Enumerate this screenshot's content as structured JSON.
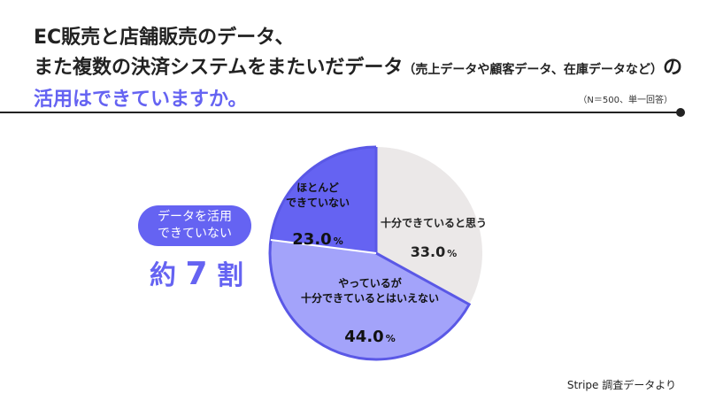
{
  "title": {
    "line1": "EC販売と店舗販売のデータ、",
    "line2_main": "また複数の決済システムをまたいだデータ",
    "line2_paren": "（売上データや顧客データ、在庫データなど）",
    "line2_end": "の",
    "line3": "活用はできていますか。"
  },
  "note": "（N＝500、単一回答）",
  "badge": {
    "line1": "データを活用",
    "line2": "できていない"
  },
  "summary": {
    "prefix": "約",
    "number": "7",
    "suffix": "割"
  },
  "source": "Stripe 調査データより",
  "colors": {
    "accent": "#6563f2",
    "light": "#a3a3fa",
    "gray": "#ebe8e8",
    "stroke": "#5a58e6"
  },
  "chart_data": {
    "type": "pie",
    "unit": "%",
    "slices": [
      {
        "label_lines": [
          "十分できていると思う"
        ],
        "value": 33.0,
        "value_label": "33.0",
        "color": "#ebe8e8",
        "text_color": "#222222"
      },
      {
        "label_lines": [
          "やっているが",
          "十分できているとはいえない"
        ],
        "value": 44.0,
        "value_label": "44.0",
        "color": "#a3a3fa",
        "text_color": "#111111"
      },
      {
        "label_lines": [
          "ほとんど",
          "できていない"
        ],
        "value": 23.0,
        "value_label": "23.0",
        "color": "#6563f2",
        "text_color": "#111111"
      }
    ]
  }
}
